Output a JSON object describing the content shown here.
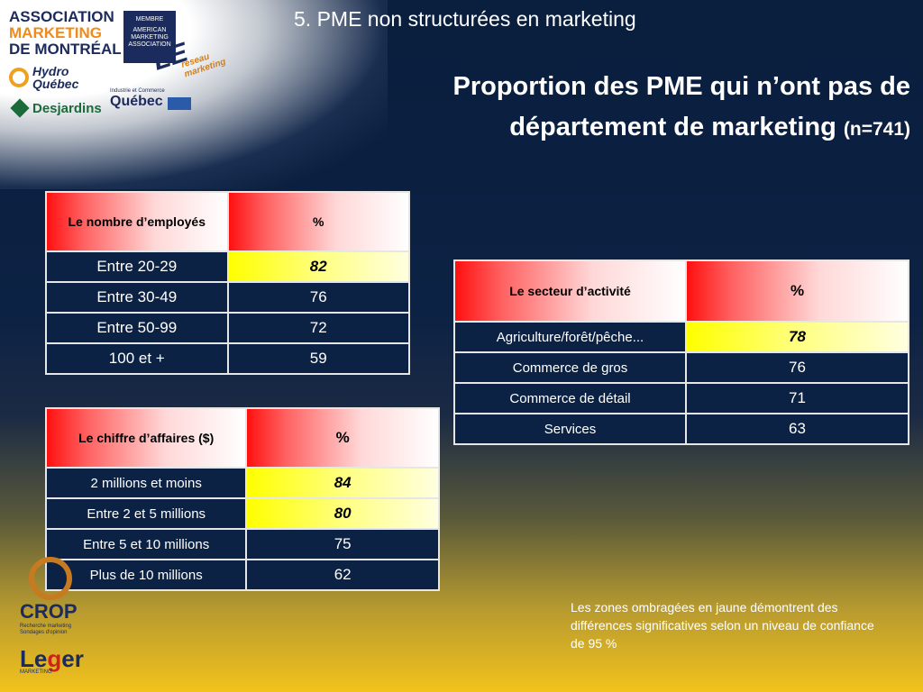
{
  "logos": {
    "amm": {
      "line1": "ASSOCIATION",
      "line2": "MARKETING",
      "line3": "DE MONTRÉAL"
    },
    "ama": {
      "top": "MEMBRE",
      "text": "AMERICAN MARKETING ASSOCIATION"
    },
    "le_reseau": {
      "big": "LE",
      "small": "réseau marketing"
    },
    "hydro": {
      "line1": "Hydro",
      "line2": "Québec"
    },
    "desjardins": "Desjardins",
    "quebec": {
      "small": "Industrie et Commerce",
      "word": "Québec"
    },
    "crop": {
      "word": "CROP",
      "sub1": "Recherche marketing",
      "sub2": "Sondages d'opinion"
    },
    "leger": {
      "word_start": "Le",
      "word_g": "g",
      "word_end": "er",
      "sub": "MARKETING"
    }
  },
  "section_title": "5. PME non structurées en marketing",
  "main_title": {
    "line1": "Proportion des PME qui n’ont pas de",
    "line2": "département de marketing",
    "sample": "(n=741)"
  },
  "employees_table": {
    "header_label": "Le nombre d’employés",
    "header_pct": "%",
    "rows": [
      {
        "label": "Entre 20-29",
        "value": "82"
      },
      {
        "label": "Entre 30-49",
        "value": "76"
      },
      {
        "label": "Entre 50-99",
        "value": "72"
      },
      {
        "label": "100 et +",
        "value": "59"
      }
    ]
  },
  "sector_table": {
    "header_label": "Le secteur d’activité",
    "header_pct": "%",
    "rows": [
      {
        "label": "Agriculture/forêt/pêche...",
        "value": "78"
      },
      {
        "label": "Commerce de gros",
        "value": "76"
      },
      {
        "label": "Commerce de détail",
        "value": "71"
      },
      {
        "label": "Services",
        "value": "63"
      }
    ]
  },
  "revenue_table": {
    "header_label": "Le chiffre d’affaires ($)",
    "header_pct": "%",
    "rows": [
      {
        "label": "2 millions et moins",
        "value": "84"
      },
      {
        "label": "Entre 2 et 5 millions",
        "value": "80"
      },
      {
        "label": "Entre 5 et 10 millions",
        "value": "75"
      },
      {
        "label": "Plus de 10 millions",
        "value": "62"
      }
    ]
  },
  "note": "Les zones ombragées en jaune démontrent des différences significatives selon un niveau de confiance de 95 %"
}
